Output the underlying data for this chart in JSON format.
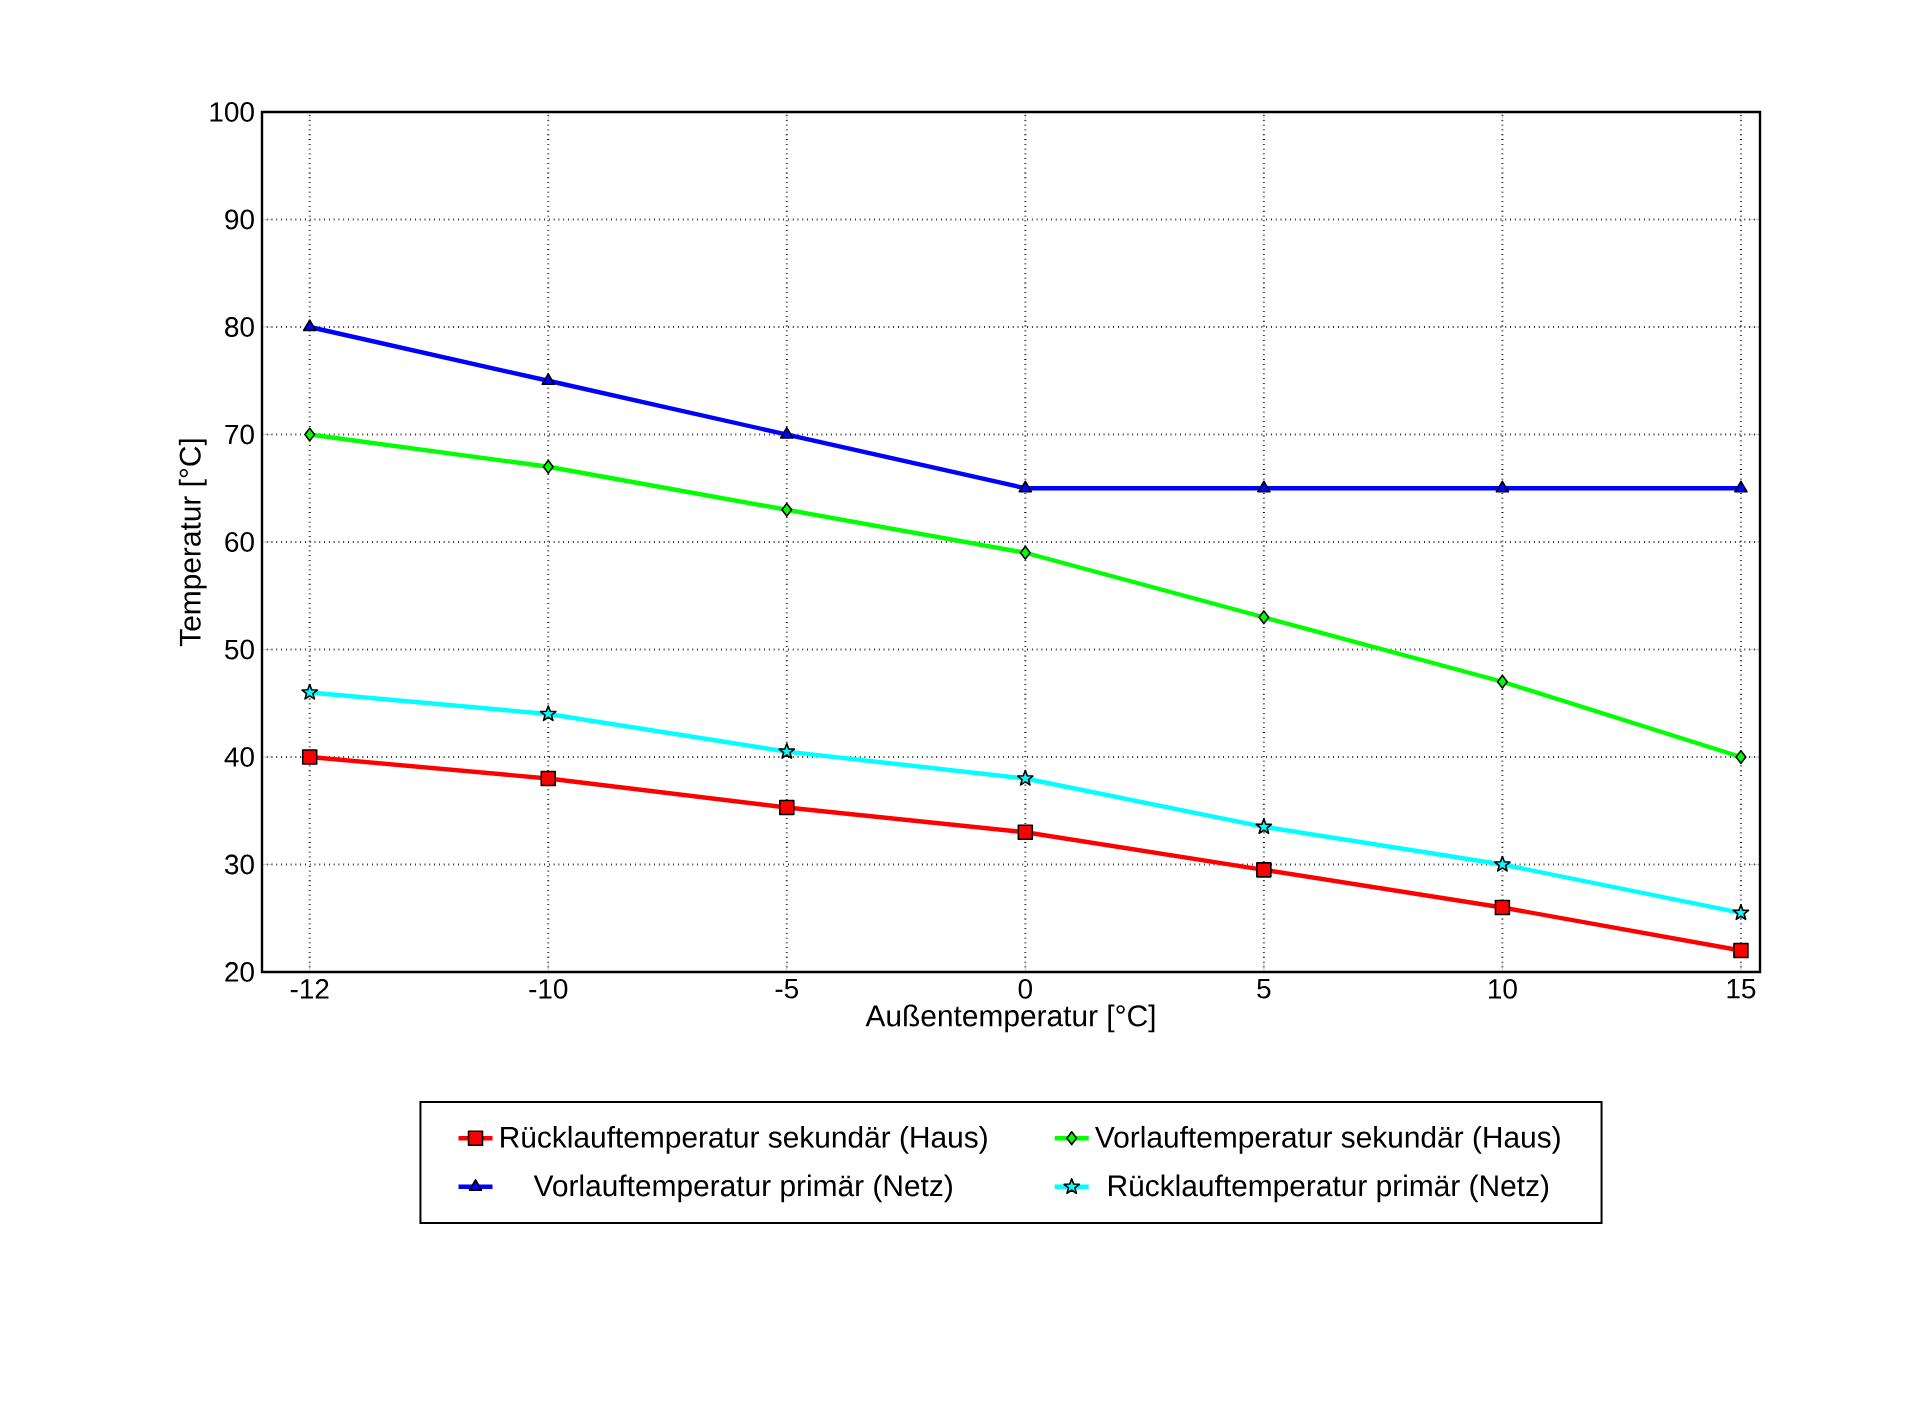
{
  "chart_data": {
    "type": "line",
    "xlabel": "Außentemperatur  [°C]",
    "ylabel": "Temperatur  [°C]",
    "categories": [
      "-12",
      "-10",
      "-5",
      "0",
      "5",
      "10",
      "15"
    ],
    "ylim": [
      20,
      100
    ],
    "yticks": [
      20,
      30,
      40,
      50,
      60,
      70,
      80,
      90,
      100
    ],
    "grid": true,
    "legend": "bottom",
    "line_style": "solid",
    "series": [
      {
        "name": "Rücklauftemperatur sekundär (Haus)",
        "color": "#ff0000",
        "marker": "square",
        "values": [
          40,
          38,
          35.3,
          33,
          29.5,
          26,
          22
        ]
      },
      {
        "name": "Vorlauftemperatur sekundär (Haus)",
        "color": "#00ff00",
        "marker": "diamond",
        "values": [
          70,
          67,
          63,
          59,
          53,
          47,
          40
        ]
      },
      {
        "name": "Vorlauftemperatur primär (Netz)",
        "color": "#0000ff",
        "marker": "triangle",
        "values": [
          80,
          75,
          70,
          65,
          65,
          65,
          65
        ]
      },
      {
        "name": "Rücklauftemperatur primär (Netz)",
        "color": "#00ffff",
        "marker": "star",
        "values": [
          46,
          44,
          40.5,
          38,
          33.5,
          30,
          25.5
        ]
      }
    ]
  }
}
